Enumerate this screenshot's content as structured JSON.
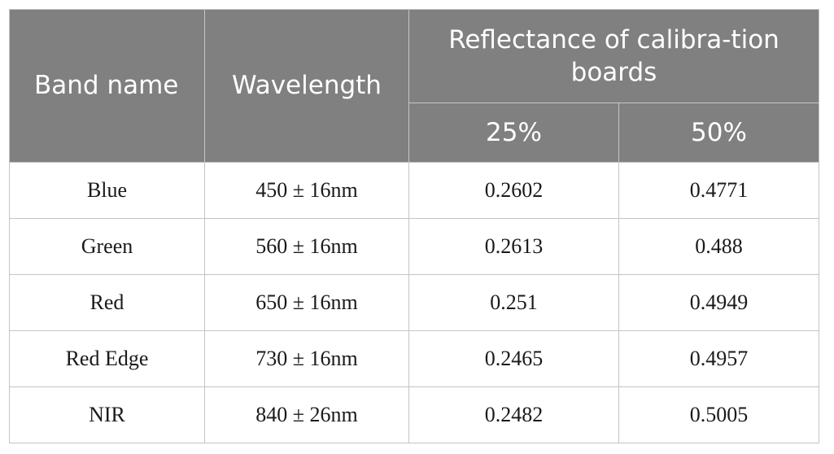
{
  "table": {
    "headers": {
      "band_name": "Band name",
      "wavelength": "Wavelength",
      "reflectance_group": "Reflectance of calibra-tion boards",
      "reflectance_25": "25%",
      "reflectance_50": "50%"
    },
    "rows": [
      {
        "band": "Blue",
        "wavelength": "450 ± 16nm",
        "r25": "0.2602",
        "r50": "0.4771"
      },
      {
        "band": "Green",
        "wavelength": "560 ± 16nm",
        "r25": "0.2613",
        "r50": "0.488"
      },
      {
        "band": "Red",
        "wavelength": "650 ± 16nm",
        "r25": "0.251",
        "r50": "0.4949"
      },
      {
        "band": "Red Edge",
        "wavelength": "730 ± 16nm",
        "r25": "0.2465",
        "r50": "0.4957"
      },
      {
        "band": "NIR",
        "wavelength": "840 ± 26nm",
        "r25": "0.2482",
        "r50": "0.5005"
      }
    ]
  }
}
